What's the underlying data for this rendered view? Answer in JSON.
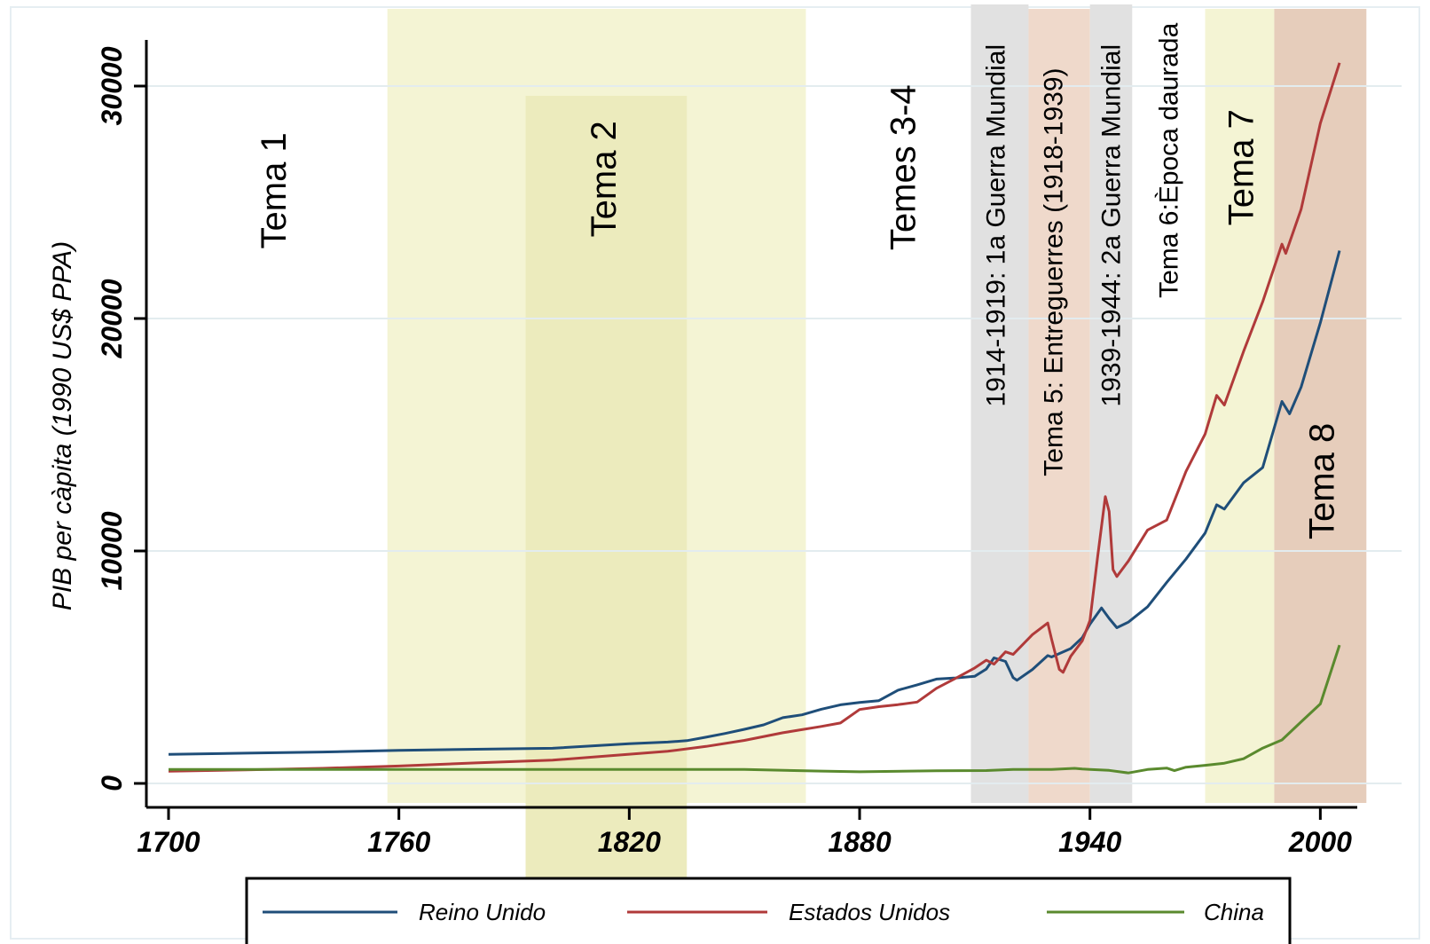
{
  "chart_data": {
    "type": "line",
    "title": "",
    "xlabel": "",
    "ylabel": "PIB per càpita (1990 US$ PPA)",
    "xlim": [
      1695,
      2013
    ],
    "ylim": [
      -1000,
      32000
    ],
    "xticks": [
      1700,
      1760,
      1820,
      1880,
      1940,
      2000
    ],
    "yticks": [
      0,
      10000,
      20000,
      30000
    ],
    "grid": "horizontal",
    "legend_position": "bottom",
    "bands": [
      {
        "label": "",
        "start": 1757,
        "end": 1866,
        "color": "#f4f4d4"
      },
      {
        "label": "",
        "start": 1793,
        "end": 1835,
        "color": "#ecebbd"
      },
      {
        "label": "",
        "start": 1909,
        "end": 1924,
        "color": "#e1e1e1"
      },
      {
        "label": "",
        "start": 1924,
        "end": 1940,
        "color": "#efd9cb"
      },
      {
        "label": "",
        "start": 1940,
        "end": 1951,
        "color": "#e1e1e1"
      },
      {
        "label": "",
        "start": 1970,
        "end": 1988,
        "color": "#f4f4d4"
      },
      {
        "label": "",
        "start": 1988,
        "end": 2012,
        "color": "#e6cdbb"
      }
    ],
    "annotations": [
      {
        "text": "Tema 1",
        "x": 1728,
        "y": 25500,
        "size": 40
      },
      {
        "text": "Tema 2",
        "x": 1814,
        "y": 26000,
        "size": 40
      },
      {
        "text": "Temes 3-4",
        "x": 1892,
        "y": 26500,
        "size": 40
      },
      {
        "text": "1914-1919: 1a Guerra Mundial",
        "x": 1916,
        "y": 24000,
        "size": 30
      },
      {
        "text": "Tema 5: Entreguerres (1918-1939)",
        "x": 1931,
        "y": 22000,
        "size": 30
      },
      {
        "text": "1939-1944: 2a Guerra Mundial",
        "x": 1946,
        "y": 24000,
        "size": 30
      },
      {
        "text": "Tema 6:Època daurada",
        "x": 1961,
        "y": 26800,
        "size": 30
      },
      {
        "text": "Tema 7",
        "x": 1980,
        "y": 26500,
        "size": 40
      },
      {
        "text": "Tema 8",
        "x": 2001,
        "y": 13000,
        "size": 40
      }
    ],
    "series": [
      {
        "name": "Reino Unido",
        "color": "#1f4e79",
        "x": [
          1700,
          1720,
          1740,
          1760,
          1780,
          1800,
          1820,
          1830,
          1835,
          1840,
          1845,
          1850,
          1855,
          1860,
          1865,
          1870,
          1875,
          1880,
          1885,
          1890,
          1895,
          1900,
          1905,
          1910,
          1913,
          1915,
          1918,
          1920,
          1921,
          1925,
          1929,
          1930,
          1935,
          1938,
          1940,
          1943,
          1945,
          1947,
          1950,
          1955,
          1960,
          1965,
          1970,
          1973,
          1975,
          1980,
          1985,
          1990,
          1992,
          1995,
          2000,
          2005
        ],
        "values": [
          1250,
          1300,
          1350,
          1420,
          1470,
          1510,
          1706,
          1780,
          1840,
          1990,
          2150,
          2330,
          2520,
          2830,
          2950,
          3190,
          3380,
          3480,
          3560,
          4010,
          4240,
          4490,
          4540,
          4610,
          4920,
          5400,
          5250,
          4550,
          4440,
          4900,
          5500,
          5440,
          5800,
          6270,
          6850,
          7550,
          7100,
          6700,
          6940,
          7600,
          8650,
          9650,
          10770,
          11990,
          11800,
          12930,
          13590,
          16430,
          15900,
          17050,
          19820,
          22920
        ]
      },
      {
        "name": "Estados Unidos",
        "color": "#b03a3a",
        "x": [
          1700,
          1720,
          1740,
          1760,
          1780,
          1800,
          1820,
          1830,
          1840,
          1850,
          1860,
          1870,
          1875,
          1880,
          1885,
          1890,
          1895,
          1900,
          1905,
          1910,
          1913,
          1915,
          1918,
          1920,
          1925,
          1929,
          1930,
          1932,
          1933,
          1935,
          1938,
          1940,
          1942,
          1944,
          1945,
          1946,
          1947,
          1950,
          1955,
          1960,
          1965,
          1970,
          1973,
          1975,
          1980,
          1985,
          1990,
          1991,
          1995,
          2000,
          2005
        ],
        "values": [
          527,
          580,
          650,
          750,
          880,
          1000,
          1257,
          1380,
          1590,
          1850,
          2180,
          2450,
          2600,
          3180,
          3300,
          3390,
          3500,
          4090,
          4520,
          4970,
          5300,
          5130,
          5660,
          5550,
          6400,
          6900,
          6210,
          4910,
          4780,
          5470,
          6130,
          7010,
          9740,
          12340,
          11700,
          9200,
          8900,
          9570,
          10900,
          11330,
          13420,
          15030,
          16690,
          16280,
          18580,
          20720,
          23200,
          22800,
          24700,
          28400,
          31000
        ]
      },
      {
        "name": "China",
        "color": "#5a8a2e",
        "x": [
          1700,
          1750,
          1800,
          1820,
          1850,
          1870,
          1880,
          1900,
          1913,
          1920,
          1930,
          1936,
          1938,
          1940,
          1945,
          1950,
          1955,
          1960,
          1962,
          1965,
          1970,
          1975,
          1980,
          1985,
          1990,
          1995,
          2000,
          2005
        ],
        "values": [
          600,
          600,
          600,
          600,
          600,
          530,
          500,
          545,
          552,
          600,
          600,
          650,
          620,
          600,
          560,
          450,
          600,
          660,
          550,
          700,
          780,
          870,
          1060,
          1520,
          1870,
          2650,
          3420,
          5950
        ]
      }
    ]
  }
}
